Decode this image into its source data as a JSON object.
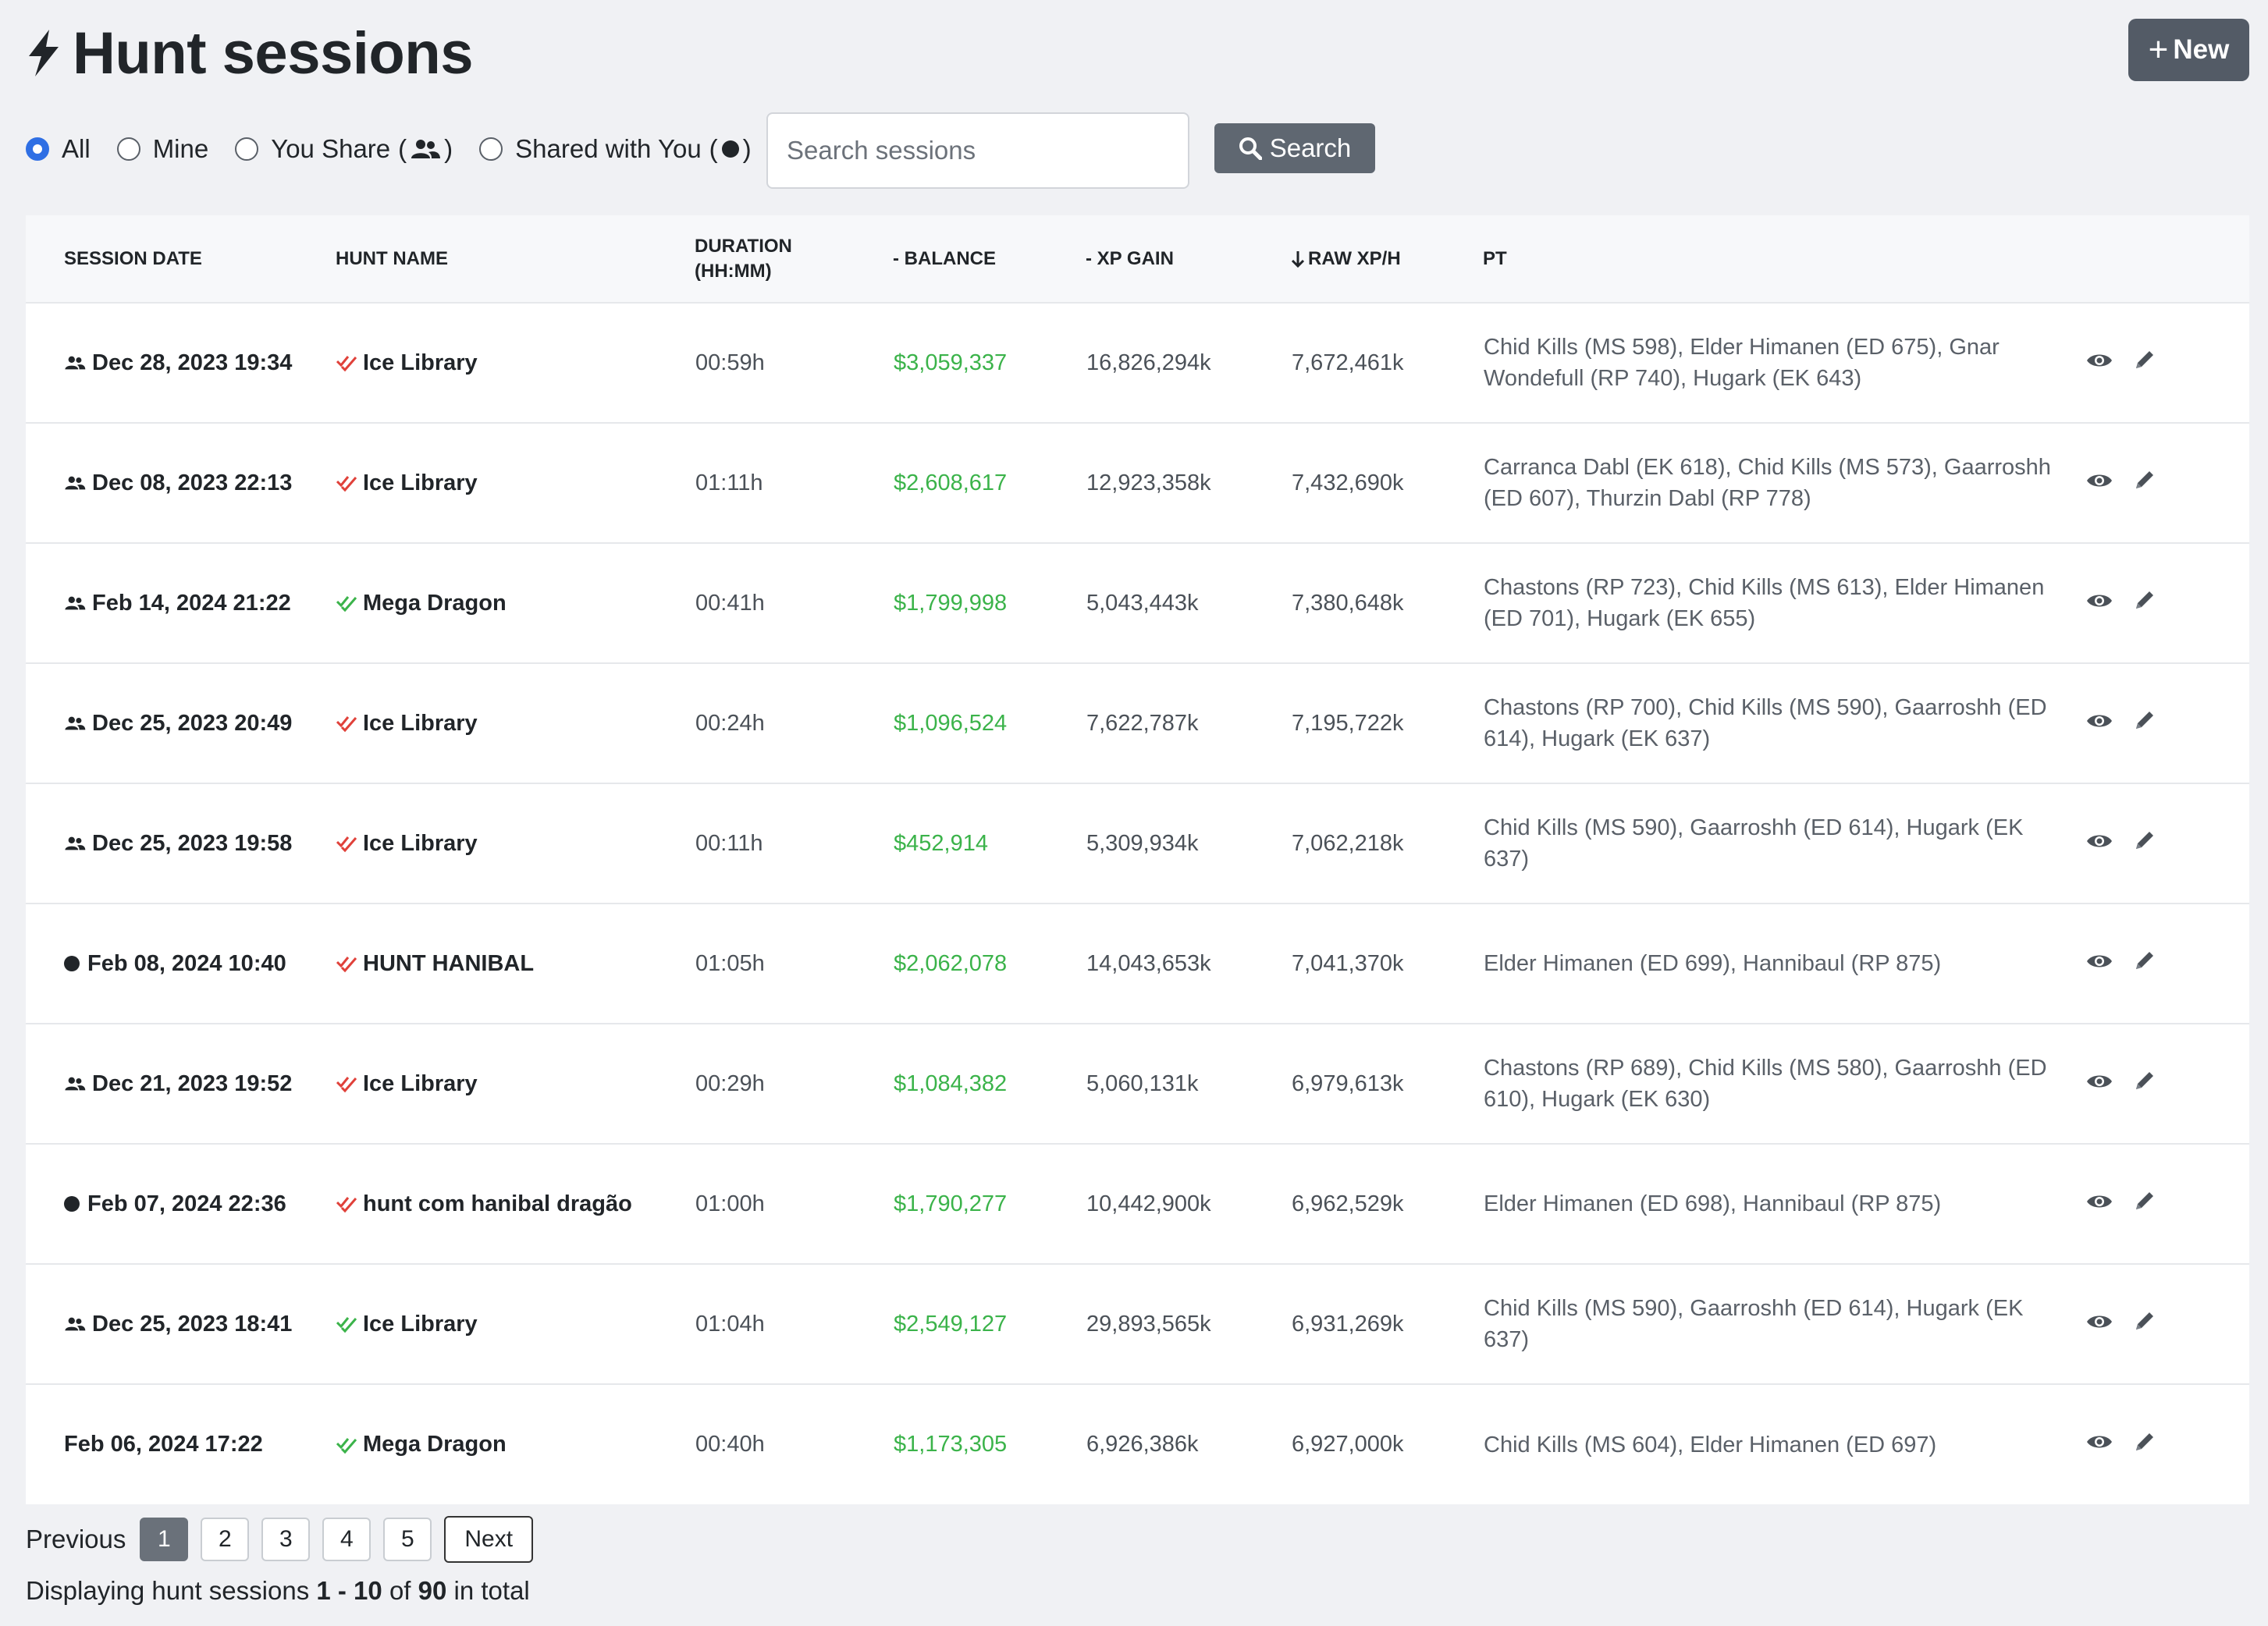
{
  "header": {
    "title": "Hunt sessions",
    "new_button": "New"
  },
  "filters": {
    "options": [
      "All",
      "Mine",
      "You Share",
      "Shared with You"
    ],
    "selected": "All",
    "open_paren": "(",
    "close_paren": ")"
  },
  "search": {
    "placeholder": "Search sessions",
    "button_label": "Search"
  },
  "table": {
    "columns": [
      "SESSION DATE",
      "HUNT NAME",
      "DURATION (HH:MM)",
      "- BALANCE",
      "- XP GAIN",
      "RAW XP/H",
      "PT"
    ],
    "rows": [
      {
        "owner": "shared",
        "date": "Dec 28, 2023 19:34",
        "hunt_status": "red",
        "hunt": "Ice Library",
        "duration": "00:59h",
        "balance": "$3,059,337",
        "xp_gain": "16,826,294k",
        "raw_xph": "7,672,461k",
        "pt": "Chid Kills (MS 598), Elder Himanen (ED 675), Gnar Wondefull (RP 740), Hugark (EK 643)"
      },
      {
        "owner": "shared",
        "date": "Dec 08, 2023 22:13",
        "hunt_status": "red",
        "hunt": "Ice Library",
        "duration": "01:11h",
        "balance": "$2,608,617",
        "xp_gain": "12,923,358k",
        "raw_xph": "7,432,690k",
        "pt": "Carranca Dabl (EK 618), Chid Kills (MS 573), Gaarroshh (ED 607), Thurzin Dabl (RP 778)"
      },
      {
        "owner": "shared",
        "date": "Feb 14, 2024 21:22",
        "hunt_status": "green",
        "hunt": "Mega Dragon",
        "duration": "00:41h",
        "balance": "$1,799,998",
        "xp_gain": "5,043,443k",
        "raw_xph": "7,380,648k",
        "pt": "Chastons (RP 723), Chid Kills (MS 613), Elder Himanen (ED 701), Hugark (EK 655)"
      },
      {
        "owner": "shared",
        "date": "Dec 25, 2023 20:49",
        "hunt_status": "red",
        "hunt": "Ice Library",
        "duration": "00:24h",
        "balance": "$1,096,524",
        "xp_gain": "7,622,787k",
        "raw_xph": "7,195,722k",
        "pt": "Chastons (RP 700), Chid Kills (MS 590), Gaarroshh (ED 614), Hugark (EK 637)"
      },
      {
        "owner": "shared",
        "date": "Dec 25, 2023 19:58",
        "hunt_status": "red",
        "hunt": "Ice Library",
        "duration": "00:11h",
        "balance": "$452,914",
        "xp_gain": "5,309,934k",
        "raw_xph": "7,062,218k",
        "pt": "Chid Kills (MS 590), Gaarroshh (ED 614), Hugark (EK 637)"
      },
      {
        "owner": "shared_with_you",
        "date": "Feb 08, 2024 10:40",
        "hunt_status": "red",
        "hunt": "HUNT HANIBAL",
        "duration": "01:05h",
        "balance": "$2,062,078",
        "xp_gain": "14,043,653k",
        "raw_xph": "7,041,370k",
        "pt": "Elder Himanen (ED 699), Hannibaul (RP 875)"
      },
      {
        "owner": "shared",
        "date": "Dec 21, 2023 19:52",
        "hunt_status": "red",
        "hunt": "Ice Library",
        "duration": "00:29h",
        "balance": "$1,084,382",
        "xp_gain": "5,060,131k",
        "raw_xph": "6,979,613k",
        "pt": "Chastons (RP 689), Chid Kills (MS 580), Gaarroshh (ED 610), Hugark (EK 630)"
      },
      {
        "owner": "shared_with_you",
        "date": "Feb 07, 2024 22:36",
        "hunt_status": "red",
        "hunt": "hunt com hanibal dragão",
        "duration": "01:00h",
        "balance": "$1,790,277",
        "xp_gain": "10,442,900k",
        "raw_xph": "6,962,529k",
        "pt": "Elder Himanen (ED 698), Hannibaul (RP 875)"
      },
      {
        "owner": "shared",
        "date": "Dec 25, 2023 18:41",
        "hunt_status": "green",
        "hunt": "Ice Library",
        "duration": "01:04h",
        "balance": "$2,549,127",
        "xp_gain": "29,893,565k",
        "raw_xph": "6,931,269k",
        "pt": "Chid Kills (MS 590), Gaarroshh (ED 614), Hugark (EK 637)"
      },
      {
        "owner": "mine",
        "date": "Feb 06, 2024 17:22",
        "hunt_status": "green",
        "hunt": "Mega Dragon",
        "duration": "00:40h",
        "balance": "$1,173,305",
        "xp_gain": "6,926,386k",
        "raw_xph": "6,927,000k",
        "pt": "Chid Kills (MS 604), Elder Himanen (ED 697)"
      }
    ]
  },
  "pagination": {
    "previous": "Previous",
    "pages": [
      "1",
      "2",
      "3",
      "4",
      "5"
    ],
    "active": "1",
    "next": "Next"
  },
  "summary": {
    "prefix": "Displaying hunt sessions",
    "range": "1 - 10",
    "of": "of",
    "total": "90",
    "suffix": "in total"
  },
  "colors": {
    "green": "#3bb34a",
    "red": "#e0413a",
    "accent": "#2f6fe4",
    "button": "#535b66"
  },
  "icons": {
    "title": "bolt-icon",
    "shared": "users-icon",
    "shared_with_you": "dot-icon",
    "status": "double-check-icon",
    "view": "eye-icon",
    "edit": "pencil-icon",
    "search": "search-icon"
  }
}
